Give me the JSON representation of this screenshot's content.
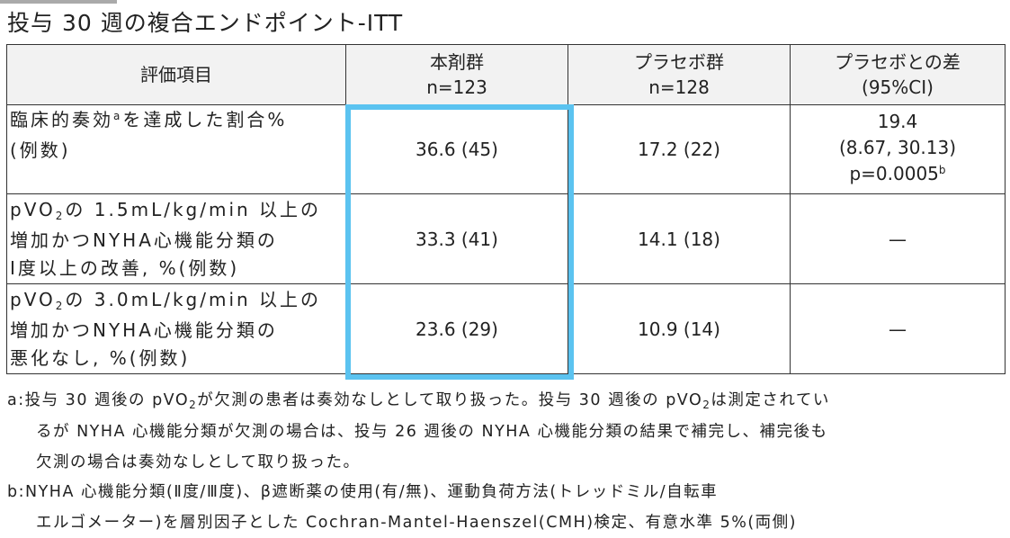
{
  "title": "投与 30 週の複合エンドポイント-ITT",
  "table": {
    "headers": {
      "endpoint": "評価項目",
      "drug": "本剤群",
      "drug_n": "n=123",
      "placebo": "プラセボ群",
      "placebo_n": "n=128",
      "diff": "プラセボとの差",
      "diff_ci": "(95%CI)"
    },
    "rows": [
      {
        "label_line1_pre": "臨床的奏効",
        "label_line1_sup": "a",
        "label_line1_post": "を達成した割合%",
        "label_line2": "(例数)",
        "drug": "36.6 (45)",
        "placebo": "17.2 (22)",
        "diff_line1": "19.4",
        "diff_line2": "(8.67, 30.13)",
        "diff_line3": "p=0.0005",
        "diff_line3_sup": "b"
      },
      {
        "label_line1_pre": "pVO",
        "label_line1_sub": "2",
        "label_line1_post": "の 1.5mL/kg/min 以上の",
        "label_line2": "増加かつNYHA心機能分類の",
        "label_line3": "Ⅰ度以上の改善, %(例数)",
        "drug": "33.3 (41)",
        "placebo": "14.1 (18)",
        "diff": "—"
      },
      {
        "label_line1_pre": "pVO",
        "label_line1_sub": "2",
        "label_line1_post": "の 3.0mL/kg/min 以上の",
        "label_line2": "増加かつNYHA心機能分類の",
        "label_line3": "悪化なし, %(例数)",
        "drug": "23.6 (29)",
        "placebo": "10.9 (14)",
        "diff": "—"
      }
    ]
  },
  "notes": {
    "a_line1_pre": "a:投与 30 週後の pVO",
    "a_line1_sub1": "2",
    "a_line1_mid": "が欠測の患者は奏効なしとして取り扱った。投与 30 週後の pVO",
    "a_line1_sub2": "2",
    "a_line1_post": "は測定されてい",
    "a_line2": "るが NYHA 心機能分類が欠測の場合は、投与 26 週後の NYHA 心機能分類の結果で補完し、補完後も",
    "a_line3": "欠測の場合は奏効なしとして取り扱った。",
    "b_line1": "b:NYHA 心機能分類(Ⅱ度/Ⅲ度)、β遮断薬の使用(有/無)、運動負荷方法(トレッドミル/自転車",
    "b_line2": "エルゴメーター)を層別因子とした Cochran-Mantel-Haenszel(CMH)検定、有意水準 5%(両側)"
  },
  "colors": {
    "highlight": "#5bc3f0",
    "header_bg": "#f2f2f2"
  }
}
